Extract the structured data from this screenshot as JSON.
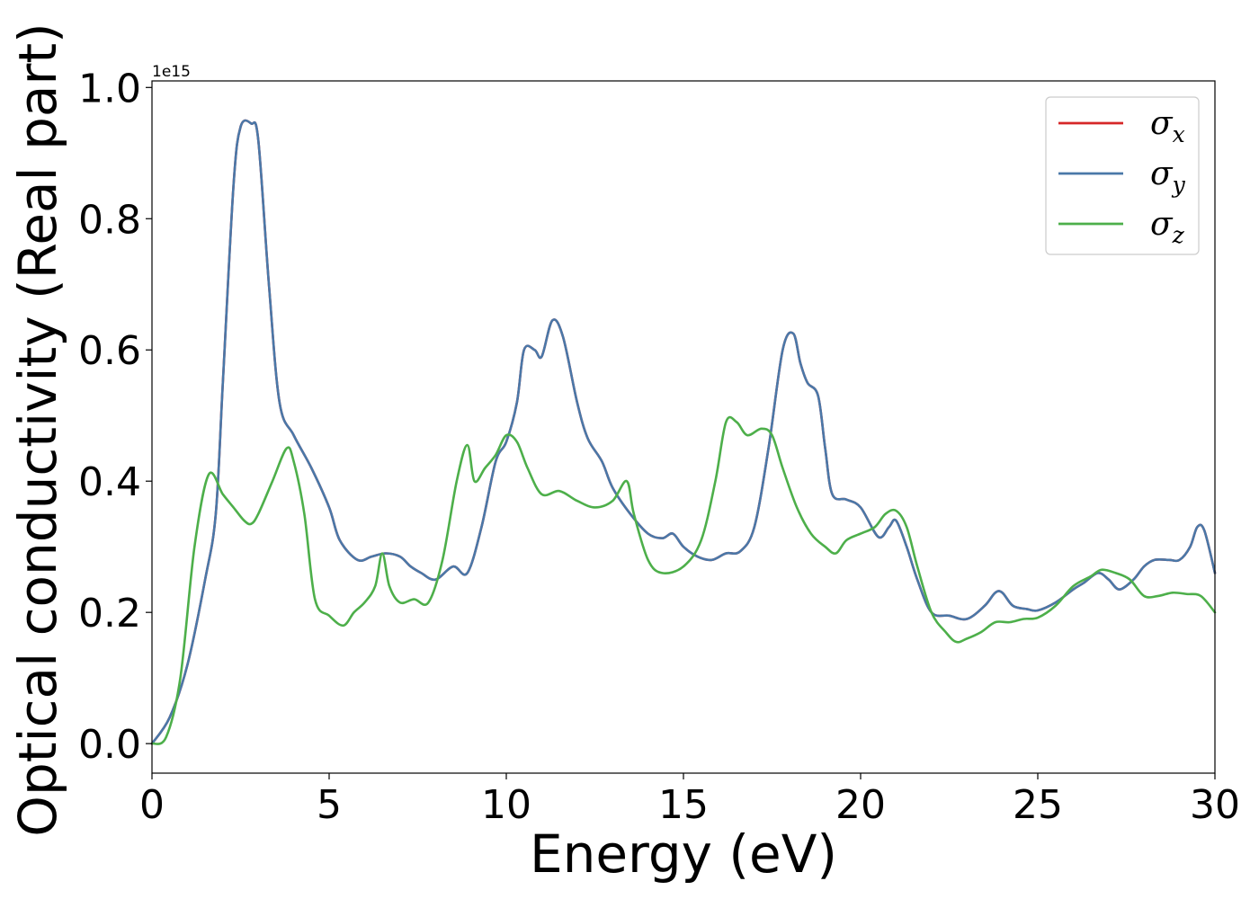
{
  "chart_data": {
    "type": "line",
    "title": "",
    "xlabel": "Energy (eV)",
    "ylabel": "Optical conductivity (Real part)",
    "y_offset_label": "1e15",
    "xlim": [
      0,
      30
    ],
    "ylim": [
      -0.045,
      1.01
    ],
    "x_ticks": [
      0,
      5,
      10,
      15,
      20,
      25,
      30
    ],
    "x_tick_labels": [
      "0",
      "5",
      "10",
      "15",
      "20",
      "25",
      "30"
    ],
    "y_ticks": [
      0.0,
      0.2,
      0.4,
      0.6,
      0.8,
      1.0
    ],
    "y_tick_labels": [
      "0.0",
      "0.2",
      "0.4",
      "0.6",
      "0.8",
      "1.0"
    ],
    "grid": false,
    "legend_position": "top-right",
    "series": [
      {
        "name": "σx",
        "legend_base": "σ",
        "legend_sub": "x",
        "color": "#d62728",
        "x": [
          0,
          0.5,
          1.0,
          1.5,
          1.8,
          2.0,
          2.3,
          2.5,
          2.8,
          3.0,
          3.3,
          3.6,
          4.0,
          4.5,
          5.0,
          5.3,
          5.8,
          6.2,
          6.6,
          7.0,
          7.3,
          7.6,
          8.0,
          8.5,
          8.9,
          9.3,
          9.7,
          10.0,
          10.3,
          10.5,
          10.8,
          11.0,
          11.3,
          11.6,
          12.0,
          12.3,
          12.7,
          13.0,
          13.5,
          14.0,
          14.4,
          14.7,
          15.0,
          15.4,
          15.8,
          16.2,
          16.6,
          17.0,
          17.4,
          17.8,
          18.1,
          18.3,
          18.5,
          18.8,
          19.0,
          19.2,
          19.6,
          20.0,
          20.5,
          20.8,
          21.0,
          21.3,
          21.6,
          22.0,
          22.5,
          23.0,
          23.5,
          23.8,
          24.0,
          24.3,
          24.7,
          25.0,
          25.5,
          26.0,
          26.3,
          26.7,
          27.0,
          27.3,
          27.7,
          28.0,
          28.3,
          28.7,
          29.0,
          29.3,
          29.5,
          29.7,
          30.0
        ],
        "y": [
          0.0,
          0.04,
          0.12,
          0.25,
          0.35,
          0.55,
          0.85,
          0.94,
          0.945,
          0.92,
          0.7,
          0.52,
          0.47,
          0.42,
          0.36,
          0.31,
          0.28,
          0.285,
          0.29,
          0.285,
          0.27,
          0.26,
          0.25,
          0.27,
          0.26,
          0.33,
          0.43,
          0.46,
          0.52,
          0.6,
          0.6,
          0.59,
          0.645,
          0.62,
          0.52,
          0.465,
          0.43,
          0.39,
          0.35,
          0.32,
          0.313,
          0.32,
          0.3,
          0.285,
          0.28,
          0.29,
          0.293,
          0.33,
          0.45,
          0.6,
          0.625,
          0.58,
          0.55,
          0.53,
          0.45,
          0.38,
          0.372,
          0.36,
          0.315,
          0.33,
          0.34,
          0.3,
          0.25,
          0.2,
          0.195,
          0.19,
          0.21,
          0.23,
          0.23,
          0.21,
          0.205,
          0.203,
          0.215,
          0.235,
          0.245,
          0.26,
          0.25,
          0.235,
          0.25,
          0.27,
          0.28,
          0.28,
          0.28,
          0.3,
          0.33,
          0.325,
          0.26
        ]
      },
      {
        "name": "σy",
        "legend_base": "σ",
        "legend_sub": "y",
        "color": "#4a78a8",
        "x": [
          0,
          0.5,
          1.0,
          1.5,
          1.8,
          2.0,
          2.3,
          2.5,
          2.8,
          3.0,
          3.3,
          3.6,
          4.0,
          4.5,
          5.0,
          5.3,
          5.8,
          6.2,
          6.6,
          7.0,
          7.3,
          7.6,
          8.0,
          8.5,
          8.9,
          9.3,
          9.7,
          10.0,
          10.3,
          10.5,
          10.8,
          11.0,
          11.3,
          11.6,
          12.0,
          12.3,
          12.7,
          13.0,
          13.5,
          14.0,
          14.4,
          14.7,
          15.0,
          15.4,
          15.8,
          16.2,
          16.6,
          17.0,
          17.4,
          17.8,
          18.1,
          18.3,
          18.5,
          18.8,
          19.0,
          19.2,
          19.6,
          20.0,
          20.5,
          20.8,
          21.0,
          21.3,
          21.6,
          22.0,
          22.5,
          23.0,
          23.5,
          23.8,
          24.0,
          24.3,
          24.7,
          25.0,
          25.5,
          26.0,
          26.3,
          26.7,
          27.0,
          27.3,
          27.7,
          28.0,
          28.3,
          28.7,
          29.0,
          29.3,
          29.5,
          29.7,
          30.0
        ],
        "y": [
          0.0,
          0.04,
          0.12,
          0.25,
          0.35,
          0.55,
          0.85,
          0.94,
          0.945,
          0.92,
          0.7,
          0.52,
          0.47,
          0.42,
          0.36,
          0.31,
          0.28,
          0.285,
          0.29,
          0.285,
          0.27,
          0.26,
          0.25,
          0.27,
          0.26,
          0.33,
          0.43,
          0.46,
          0.52,
          0.6,
          0.6,
          0.59,
          0.645,
          0.62,
          0.52,
          0.465,
          0.43,
          0.39,
          0.35,
          0.32,
          0.313,
          0.32,
          0.3,
          0.285,
          0.28,
          0.29,
          0.293,
          0.33,
          0.45,
          0.6,
          0.625,
          0.58,
          0.55,
          0.53,
          0.45,
          0.38,
          0.372,
          0.36,
          0.315,
          0.33,
          0.34,
          0.3,
          0.25,
          0.2,
          0.195,
          0.19,
          0.21,
          0.23,
          0.23,
          0.21,
          0.205,
          0.203,
          0.215,
          0.235,
          0.245,
          0.26,
          0.25,
          0.235,
          0.25,
          0.27,
          0.28,
          0.28,
          0.28,
          0.3,
          0.33,
          0.325,
          0.26
        ]
      },
      {
        "name": "σz",
        "legend_base": "σ",
        "legend_sub": "z",
        "color": "#4daf4a",
        "x": [
          0,
          0.4,
          0.8,
          1.2,
          1.6,
          2.0,
          2.3,
          2.6,
          2.8,
          3.0,
          3.4,
          3.8,
          4.0,
          4.3,
          4.6,
          5.0,
          5.4,
          5.7,
          6.0,
          6.3,
          6.5,
          6.7,
          7.0,
          7.4,
          7.8,
          8.2,
          8.6,
          8.9,
          9.1,
          9.4,
          9.7,
          10.0,
          10.3,
          10.6,
          11.0,
          11.5,
          12.0,
          12.5,
          13.0,
          13.4,
          13.6,
          14.0,
          14.4,
          15.0,
          15.5,
          15.9,
          16.2,
          16.5,
          16.8,
          17.2,
          17.5,
          17.8,
          18.2,
          18.6,
          19.0,
          19.3,
          19.6,
          20.0,
          20.4,
          20.7,
          21.0,
          21.3,
          21.6,
          22.0,
          22.4,
          22.7,
          23.0,
          23.4,
          23.8,
          24.2,
          24.6,
          25.0,
          25.5,
          26.0,
          26.5,
          26.8,
          27.2,
          27.6,
          28.0,
          28.4,
          28.8,
          29.2,
          29.6,
          30.0
        ],
        "y": [
          0.0,
          0.01,
          0.1,
          0.3,
          0.41,
          0.38,
          0.36,
          0.34,
          0.335,
          0.35,
          0.4,
          0.45,
          0.43,
          0.35,
          0.22,
          0.195,
          0.18,
          0.2,
          0.215,
          0.24,
          0.29,
          0.24,
          0.215,
          0.22,
          0.215,
          0.28,
          0.4,
          0.455,
          0.4,
          0.42,
          0.44,
          0.47,
          0.46,
          0.42,
          0.38,
          0.385,
          0.37,
          0.36,
          0.37,
          0.4,
          0.35,
          0.28,
          0.26,
          0.27,
          0.31,
          0.4,
          0.49,
          0.49,
          0.47,
          0.48,
          0.47,
          0.42,
          0.36,
          0.32,
          0.3,
          0.29,
          0.31,
          0.32,
          0.33,
          0.35,
          0.355,
          0.33,
          0.27,
          0.2,
          0.17,
          0.155,
          0.16,
          0.17,
          0.185,
          0.185,
          0.19,
          0.192,
          0.21,
          0.24,
          0.255,
          0.265,
          0.26,
          0.25,
          0.225,
          0.225,
          0.23,
          0.228,
          0.225,
          0.2
        ]
      }
    ]
  }
}
